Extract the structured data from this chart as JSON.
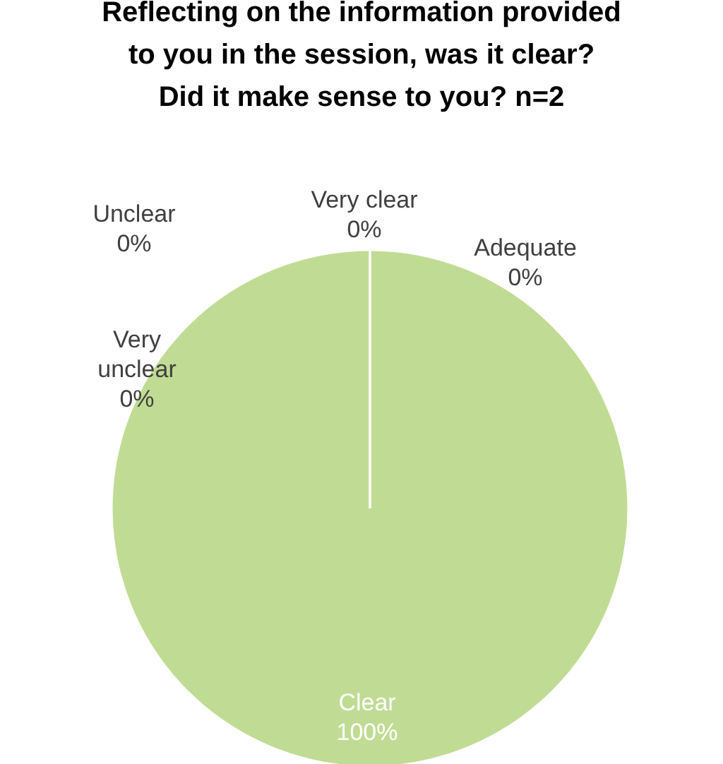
{
  "chart_data": {
    "type": "pie",
    "title": "Reflecting on the information provided to you in the session, was it clear? Did it make sense to you? n=2",
    "categories": [
      "Very clear",
      "Adequate",
      "Clear",
      "Unclear",
      "Very unclear"
    ],
    "values": [
      0,
      0,
      100,
      0,
      0
    ],
    "value_labels": [
      "0%",
      "0%",
      "100%",
      "0%",
      "0%"
    ],
    "colors": [
      "#a9d18e",
      "#70ad47",
      "#c0dc94",
      "#548235",
      "#e2f0d9"
    ]
  }
}
